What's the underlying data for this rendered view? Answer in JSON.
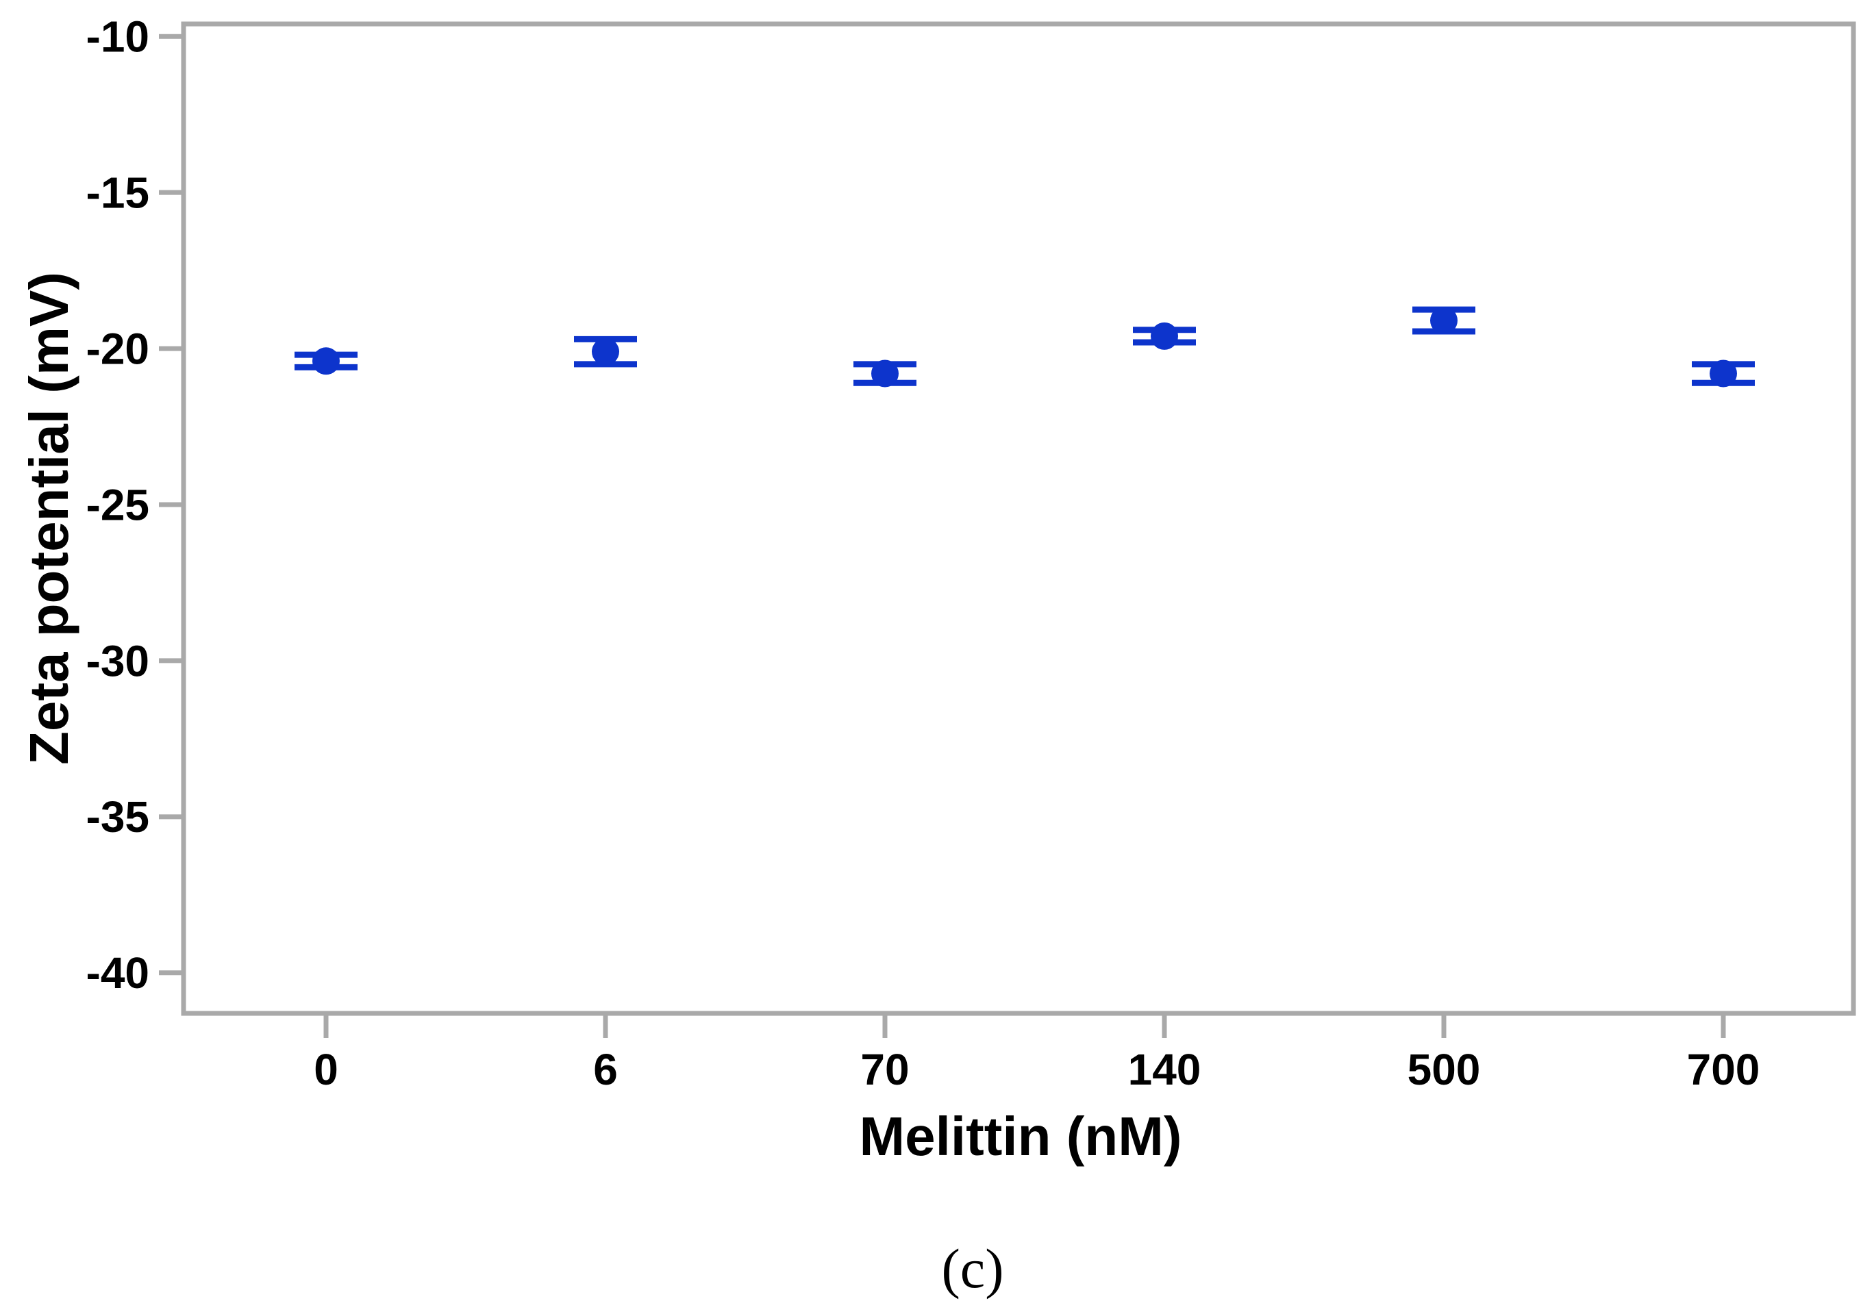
{
  "chart_data": {
    "type": "scatter",
    "title": "",
    "xlabel": "Melittin (nM)",
    "ylabel": "Zeta potential (mV)",
    "caption": "(c)",
    "categories": [
      "0",
      "6",
      "70",
      "140",
      "500",
      "700"
    ],
    "series": [
      {
        "name": "Zeta potential",
        "points": [
          {
            "x": "0",
            "y": -20.4,
            "err": 0.2
          },
          {
            "x": "6",
            "y": -20.1,
            "err": 0.4
          },
          {
            "x": "70",
            "y": -20.8,
            "err": 0.3
          },
          {
            "x": "140",
            "y": -19.6,
            "err": 0.2
          },
          {
            "x": "500",
            "y": -19.1,
            "err": 0.35
          },
          {
            "x": "700",
            "y": -20.8,
            "err": 0.3
          }
        ]
      }
    ],
    "y_ticks": [
      -10,
      -15,
      -20,
      -25,
      -30,
      -35,
      -40
    ],
    "ylim": [
      -41.3,
      -9.6
    ],
    "grid": false,
    "legend_position": "none",
    "marker_color": "#0d34cc",
    "axis_color": "#a9a9a9",
    "text_color": "#000000"
  }
}
